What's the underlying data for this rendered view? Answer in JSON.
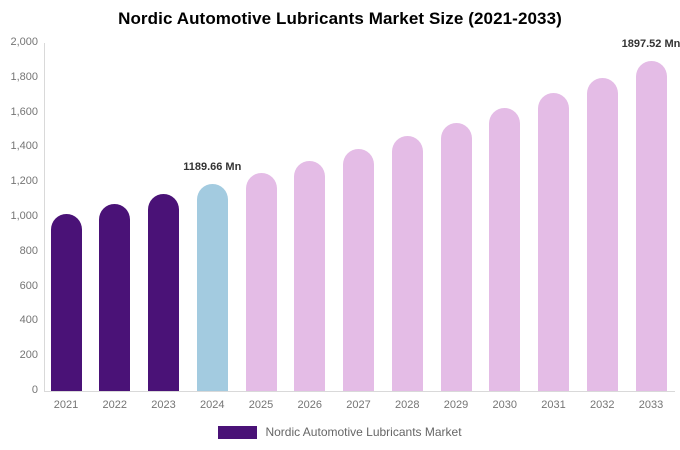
{
  "title": "Nordic Automotive Lubricants Market Size (2021-2033)",
  "legend": {
    "label": "Nordic Automotive Lubricants Market",
    "swatch_color": "#4A1277"
  },
  "chart_data": {
    "type": "bar",
    "title": "Nordic Automotive Lubricants Market Size (2021-2033)",
    "unit": "Mn",
    "categories": [
      "2021",
      "2022",
      "2023",
      "2024",
      "2025",
      "2026",
      "2027",
      "2028",
      "2029",
      "2030",
      "2031",
      "2032",
      "2033"
    ],
    "values": [
      1020,
      1072,
      1130,
      1189.66,
      1253,
      1320,
      1390,
      1464,
      1542,
      1624,
      1710,
      1801,
      1897.52
    ],
    "bar_roles": [
      "historical",
      "historical",
      "historical",
      "current",
      "forecast",
      "forecast",
      "forecast",
      "forecast",
      "forecast",
      "forecast",
      "forecast",
      "forecast",
      "forecast"
    ],
    "colors": {
      "historical": "#4A1277",
      "current": "#A3CBE0",
      "forecast": "#E4BCE6"
    },
    "axis_color": "#d9d9d9",
    "tick_label_color": "#757575",
    "value_label_color": "#333333",
    "xlabel": "",
    "ylabel": "",
    "ylim": [
      0,
      2000
    ],
    "ytick_values": [
      0,
      200,
      400,
      600,
      800,
      1000,
      1200,
      1400,
      1600,
      1800,
      2000
    ],
    "ytick_labels": [
      "0",
      "200",
      "400",
      "600",
      "800",
      "1,000",
      "1,200",
      "1,400",
      "1,600",
      "1,800",
      "2,000"
    ],
    "grid": false,
    "legend_position": "bottom",
    "annotations": [
      {
        "category": "2024",
        "text": "1189.66 Mn"
      },
      {
        "category": "2033",
        "text": "1897.52 Mn"
      }
    ]
  }
}
